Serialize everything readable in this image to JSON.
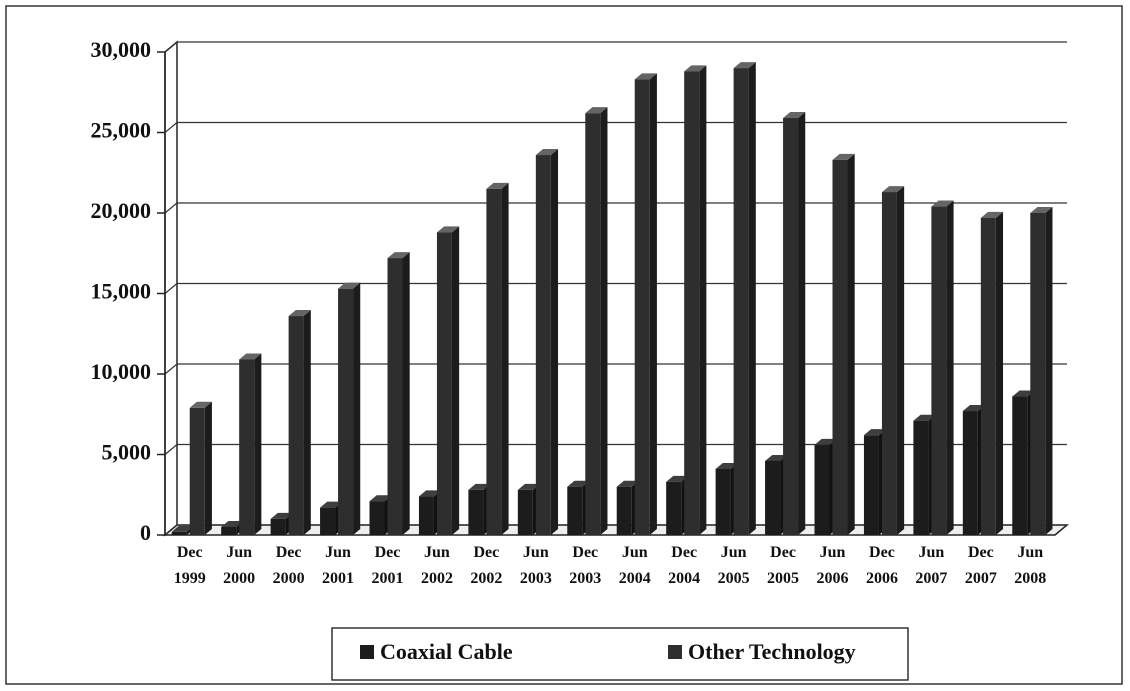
{
  "chart_data": {
    "type": "bar",
    "categories": [
      "Dec 1999",
      "Jun 2000",
      "Dec 2000",
      "Jun 2001",
      "Dec 2001",
      "Jun 2002",
      "Dec 2002",
      "Jun 2003",
      "Dec 2003",
      "Jun 2004",
      "Dec 2004",
      "Jun 2005",
      "Dec 2005",
      "Jun 2006",
      "Dec 2006",
      "Jun 2007",
      "Dec 2007",
      "Jun 2008"
    ],
    "series": [
      {
        "name": "Coaxial Cable",
        "color": "#1c1c1c",
        "values": [
          200,
          500,
          1000,
          1700,
          2100,
          2400,
          2800,
          2800,
          3000,
          3000,
          3300,
          4100,
          4600,
          5600,
          6200,
          7100,
          7700,
          8600
        ]
      },
      {
        "name": "Other Technology",
        "color": "#2e2e2e",
        "values": [
          7900,
          10900,
          13600,
          15300,
          17200,
          18800,
          21500,
          23600,
          26200,
          28300,
          28800,
          29000,
          25900,
          23300,
          21300,
          20400,
          19700,
          20000
        ]
      }
    ],
    "ylim": [
      0,
      30000
    ],
    "yticks": [
      0,
      {
        "value": 5000,
        "label": "5,000"
      },
      {
        "value": 10000,
        "label": "10,000"
      },
      {
        "value": 15000,
        "label": "15,000"
      },
      {
        "value": 20000,
        "label": "20,000"
      },
      {
        "value": 25000,
        "label": "25,000"
      },
      {
        "value": 30000,
        "label": "30,000"
      }
    ],
    "grid": true,
    "legend": "bottom"
  }
}
